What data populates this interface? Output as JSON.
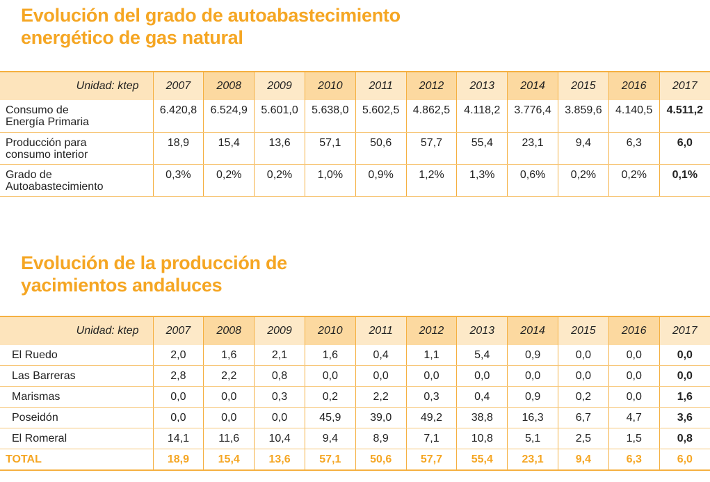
{
  "tables": [
    {
      "title": [
        "Evolución del grado de autoabastecimiento",
        "energético de gas natural"
      ],
      "unit": "Unidad: ktep",
      "years": [
        2007,
        2008,
        2009,
        2010,
        2011,
        2012,
        2013,
        2014,
        2015,
        2016,
        2017
      ],
      "rows": [
        {
          "label": [
            "Consumo de",
            "Energía Primaria"
          ],
          "values": [
            "6.420,8",
            "6.524,9",
            "5.601,0",
            "5.638,0",
            "5.602,5",
            "4.862,5",
            "4.118,2",
            "3.776,4",
            "3.859,6",
            "4.140,5",
            "4.511,2"
          ]
        },
        {
          "label": [
            "Producción para",
            "consumo interior"
          ],
          "values": [
            "18,9",
            "15,4",
            "13,6",
            "57,1",
            "50,6",
            "57,7",
            "55,4",
            "23,1",
            "9,4",
            "6,3",
            "6,0"
          ]
        },
        {
          "label": [
            "Grado de",
            "Autoabastecimiento"
          ],
          "values": [
            "0,3%",
            "0,2%",
            "0,2%",
            "1,0%",
            "0,9%",
            "1,2%",
            "1,3%",
            "0,6%",
            "0,2%",
            "0,2%",
            "0,1%"
          ]
        }
      ]
    },
    {
      "title": [
        "Evolución de la producción de",
        "yacimientos andaluces"
      ],
      "unit": "Unidad: ktep",
      "years": [
        2007,
        2008,
        2009,
        2010,
        2011,
        2012,
        2013,
        2014,
        2015,
        2016,
        2017
      ],
      "rows": [
        {
          "label": [
            "El Ruedo"
          ],
          "values": [
            "2,0",
            "1,6",
            "2,1",
            "1,6",
            "0,4",
            "1,1",
            "5,4",
            "0,9",
            "0,0",
            "0,0",
            "0,0"
          ]
        },
        {
          "label": [
            "Las Barreras"
          ],
          "values": [
            "2,8",
            "2,2",
            "0,8",
            "0,0",
            "0,0",
            "0,0",
            "0,0",
            "0,0",
            "0,0",
            "0,0",
            "0,0"
          ]
        },
        {
          "label": [
            "Marismas"
          ],
          "values": [
            "0,0",
            "0,0",
            "0,3",
            "0,2",
            "2,2",
            "0,3",
            "0,4",
            "0,9",
            "0,2",
            "0,0",
            "1,6"
          ]
        },
        {
          "label": [
            "Poseidón"
          ],
          "values": [
            "0,0",
            "0,0",
            "0,0",
            "45,9",
            "39,0",
            "49,2",
            "38,8",
            "16,3",
            "6,7",
            "4,7",
            "3,6"
          ]
        },
        {
          "label": [
            "El Romeral"
          ],
          "values": [
            "14,1",
            "11,6",
            "10,4",
            "9,4",
            "8,9",
            "7,1",
            "10,8",
            "5,1",
            "2,5",
            "1,5",
            "0,8"
          ]
        }
      ],
      "total": {
        "label": [
          "TOTAL"
        ],
        "values": [
          "18,9",
          "15,4",
          "13,6",
          "57,1",
          "50,6",
          "57,7",
          "55,4",
          "23,1",
          "9,4",
          "6,3",
          "6,0"
        ]
      }
    }
  ]
}
